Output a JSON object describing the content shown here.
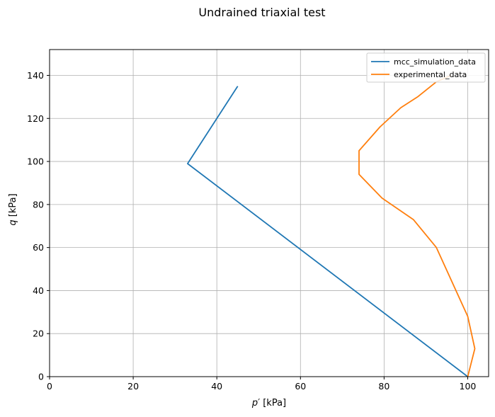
{
  "chart_data": {
    "type": "line",
    "title": "Undrained triaxial test",
    "xlabel_symbol": "p′",
    "xlabel_unit": " [kPa]",
    "ylabel_symbol": "q",
    "ylabel_unit": " [kPa]",
    "xlim": [
      0,
      105
    ],
    "ylim": [
      0,
      152
    ],
    "xticks": [
      0,
      20,
      40,
      60,
      80,
      100
    ],
    "yticks": [
      0,
      20,
      40,
      60,
      80,
      100,
      120,
      140
    ],
    "grid": true,
    "legend_position": "upper-right",
    "series": [
      {
        "name": "mcc_simulation_data",
        "color": "#1f77b4",
        "points": [
          [
            100,
            0
          ],
          [
            33,
            99
          ],
          [
            45,
            135
          ]
        ]
      },
      {
        "name": "experimental_data",
        "color": "#ff7f0e",
        "points": [
          [
            100,
            0
          ],
          [
            101.7,
            13
          ],
          [
            100,
            28
          ],
          [
            92.5,
            60
          ],
          [
            87,
            73
          ],
          [
            79.5,
            83
          ],
          [
            74,
            94
          ],
          [
            74,
            105
          ],
          [
            79,
            116
          ],
          [
            84,
            125
          ],
          [
            88,
            130
          ],
          [
            92.5,
            137
          ],
          [
            96,
            140
          ]
        ]
      }
    ]
  }
}
